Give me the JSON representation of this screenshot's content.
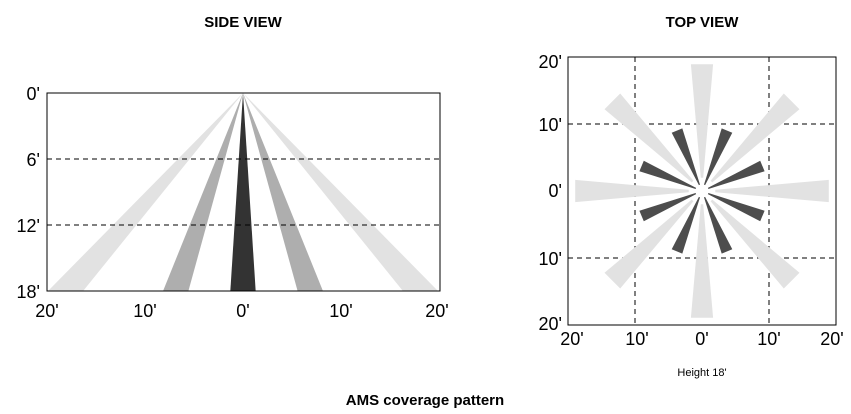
{
  "side_view": {
    "title": "SIDE VIEW",
    "y_labels": [
      "0'",
      "6'",
      "12'",
      "18'"
    ],
    "x_labels": [
      "20'",
      "10'",
      "0'",
      "10'",
      "20'"
    ],
    "beams": [
      {
        "ring": "outer",
        "side": "left",
        "bottom_start": -20,
        "bottom_end": -16.4,
        "color": "#e2e2e2"
      },
      {
        "ring": "outer",
        "side": "right",
        "bottom_start": 16.4,
        "bottom_end": 20,
        "color": "#e2e2e2"
      },
      {
        "ring": "middle",
        "side": "left",
        "bottom_start": -8.2,
        "bottom_end": -5.6,
        "color": "#aeaeae"
      },
      {
        "ring": "middle",
        "side": "right",
        "bottom_start": 5.6,
        "bottom_end": 8.2,
        "color": "#aeaeae"
      },
      {
        "ring": "center",
        "side": "center",
        "bottom_start": -1.3,
        "bottom_end": 1.3,
        "color": "#333333"
      }
    ]
  },
  "top_view": {
    "title": "TOP VIEW",
    "y_labels": [
      "20'",
      "10'",
      "0'",
      "10'",
      "20'"
    ],
    "x_labels": [
      "20'",
      "10'",
      "0'",
      "10'",
      "20'"
    ],
    "outer_beams": {
      "count": 8,
      "start_deg": 0,
      "step_deg": 45,
      "inner_radius": 2,
      "outer_radius": 19,
      "half_width_deg": 5,
      "color": "#e2e2e2"
    },
    "inner_beams": {
      "count": 8,
      "start_deg": 22.5,
      "step_deg": 45,
      "inner_radius": 1,
      "outer_radius": 9.8,
      "half_width_deg": 5,
      "color": "#4d4d4d"
    },
    "note": "Height 18'"
  },
  "caption": "AMS coverage pattern"
}
